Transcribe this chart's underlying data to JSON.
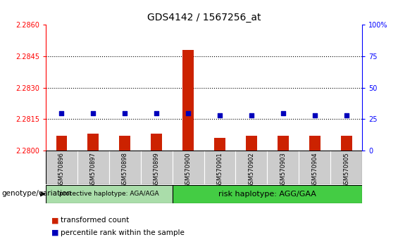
{
  "title": "GDS4142 / 1567256_at",
  "samples": [
    "GSM570896",
    "GSM570897",
    "GSM570898",
    "GSM570899",
    "GSM570900",
    "GSM570901",
    "GSM570902",
    "GSM570903",
    "GSM570904",
    "GSM570905"
  ],
  "transformed_count": [
    2.2807,
    2.2808,
    2.2807,
    2.2808,
    2.2848,
    2.2806,
    2.2807,
    2.2807,
    2.2807,
    2.2807
  ],
  "percentile_rank": [
    30,
    30,
    30,
    30,
    30,
    28,
    28,
    30,
    28,
    28
  ],
  "ylim_left": [
    2.28,
    2.286
  ],
  "ylim_right": [
    0,
    100
  ],
  "yticks_left": [
    2.28,
    2.2815,
    2.283,
    2.2845,
    2.286
  ],
  "yticks_right": [
    0,
    25,
    50,
    75,
    100
  ],
  "hline_values": [
    2.2815,
    2.283,
    2.2845
  ],
  "bar_color": "#cc2200",
  "dot_color": "#0000bb",
  "protective_samples": 4,
  "protective_label": "protective haplotype: AGA/AGA",
  "risk_label": "risk haplotype: AGG/GAA",
  "protective_bg": "#aaddaa",
  "risk_bg": "#44cc44",
  "xticklabel_bg": "#cccccc",
  "legend_bar_label": "transformed count",
  "legend_dot_label": "percentile rank within the sample",
  "genotype_label": "genotype/variation",
  "bar_bottom": 2.28
}
